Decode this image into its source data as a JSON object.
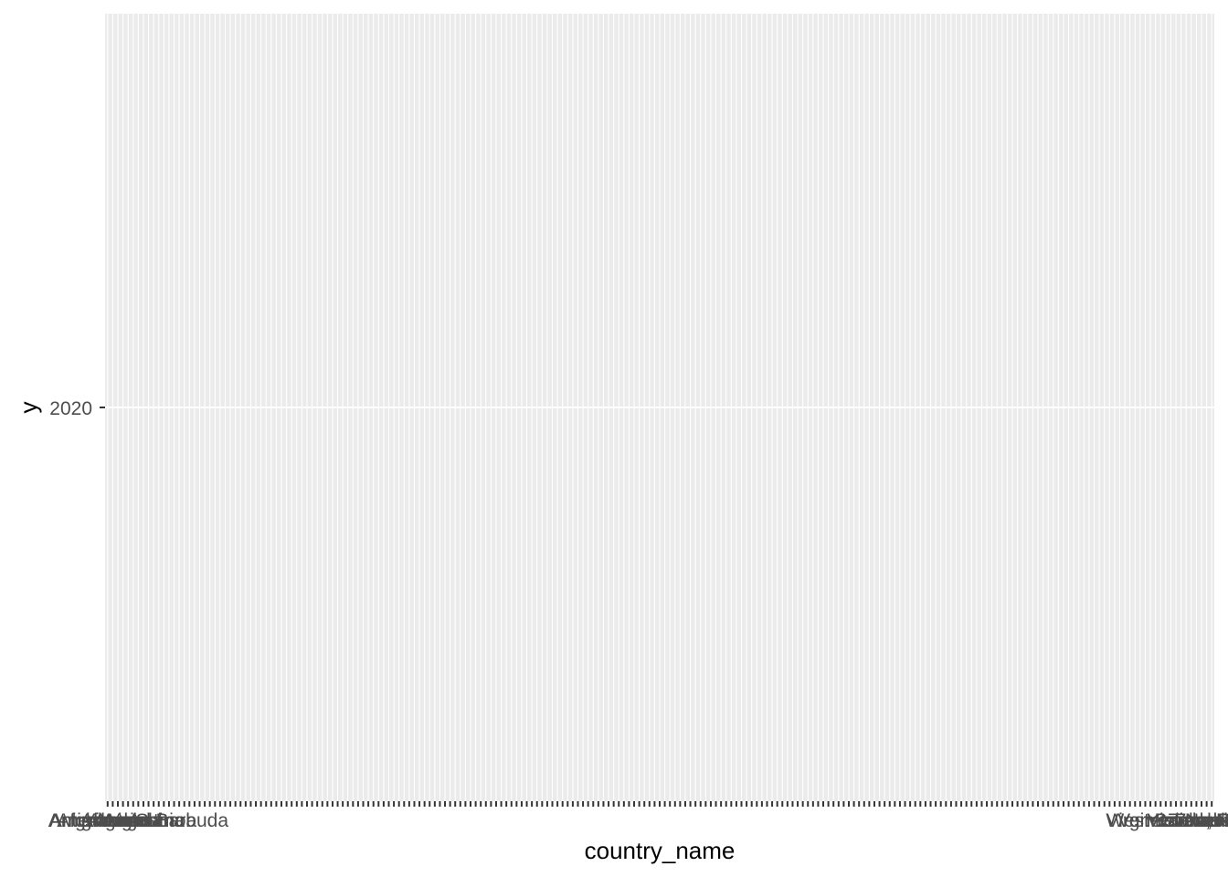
{
  "chart_data": {
    "type": "scatter",
    "xlabel": "country_name",
    "ylabel": "y",
    "y_ticks": [
      2020
    ],
    "y_tick_labels": [
      "2020"
    ],
    "grid": true,
    "theme": "ggplot2 default (grey panel)",
    "colors": {
      "panel": "#ebebeb",
      "grid": "#ffffff",
      "tick_label": "#4d4d4d",
      "axis_title": "#000000",
      "tick_mark": "#333333"
    },
    "x_category_count": 217,
    "x_tick_labels_visible_first": [
      "Afghanistan",
      "Albania",
      "Algeria",
      "American Samoa",
      "Andorra",
      "Angola",
      "Antigua and Barbuda",
      "Argentina",
      "Armenia",
      "Aruba"
    ],
    "x_tick_labels_visible_last": [
      "Venezuela, RB",
      "Viet Nam",
      "Virgin Islands (U.S.)",
      "West Bank and Gaza",
      "Yemen, Rep.",
      "Zambia",
      "Zimbabwe"
    ],
    "values": []
  }
}
